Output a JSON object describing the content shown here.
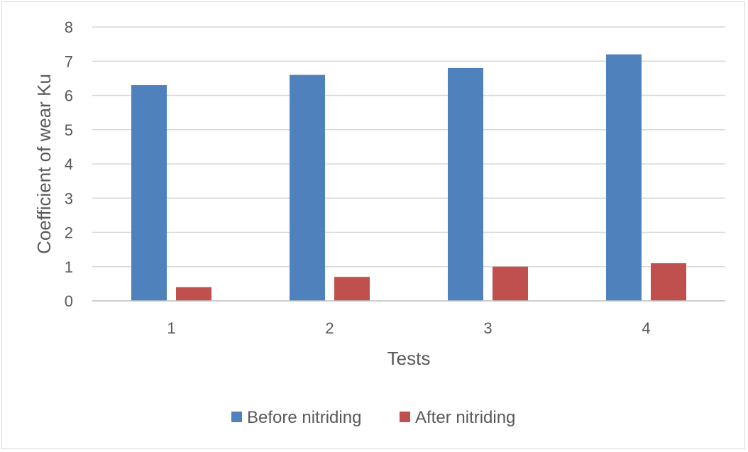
{
  "chart_data": {
    "type": "bar",
    "title": "",
    "xlabel": "Tests",
    "ylabel": "Coefficient of wear Ku",
    "categories": [
      "1",
      "2",
      "3",
      "4"
    ],
    "series": [
      {
        "name": "Before nitriding",
        "color": "#4f81bd",
        "values": [
          6.3,
          6.6,
          6.8,
          7.2
        ]
      },
      {
        "name": "After nitriding",
        "color": "#c0504d",
        "values": [
          0.4,
          0.7,
          1.0,
          1.1
        ]
      }
    ],
    "ylim": [
      0,
      8
    ],
    "yticks": [
      "0",
      "1",
      "2",
      "3",
      "4",
      "5",
      "6",
      "7",
      "8"
    ],
    "grid": true,
    "legend_position": "bottom"
  }
}
